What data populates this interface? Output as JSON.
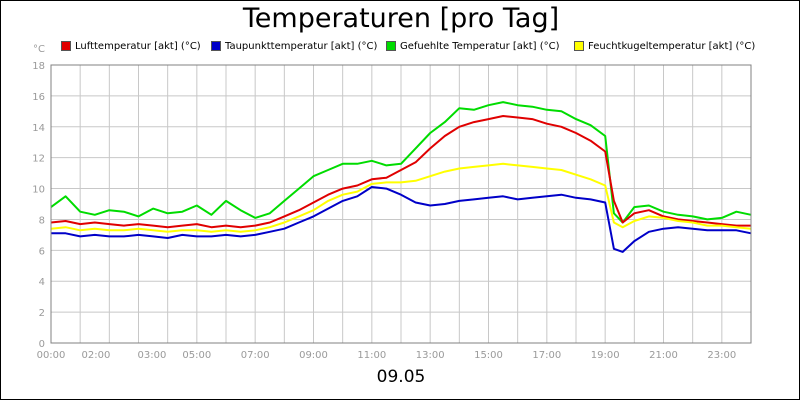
{
  "chart_data": {
    "type": "line",
    "title": "Temperaturen [pro Tag]",
    "ylabel": "°C",
    "xlabel": "09.05",
    "ylim": [
      0,
      18
    ],
    "xlim": [
      0,
      24
    ],
    "grid": true,
    "legend_position": "top",
    "y_ticks": [
      0,
      2,
      4,
      6,
      8,
      10,
      12,
      14,
      16,
      18
    ],
    "x_ticks": [
      {
        "value": 0,
        "label": "00:00"
      },
      {
        "value": 2,
        "label": "02:00"
      },
      {
        "value": 3,
        "label": "03:00"
      },
      {
        "value": 5,
        "label": "05:00"
      },
      {
        "value": 7,
        "label": "07:00"
      },
      {
        "value": 9,
        "label": "09:00"
      },
      {
        "value": 11,
        "label": "11:00"
      },
      {
        "value": 13,
        "label": "13:00"
      },
      {
        "value": 15,
        "label": "15:00"
      },
      {
        "value": 17,
        "label": "17:00"
      },
      {
        "value": 19,
        "label": "19:00"
      },
      {
        "value": 21,
        "label": "21:00"
      },
      {
        "value": 23,
        "label": "23:00"
      }
    ],
    "x": [
      0,
      0.5,
      1,
      1.5,
      2,
      2.5,
      3,
      3.5,
      4,
      4.5,
      5,
      5.5,
      6,
      6.5,
      7,
      7.5,
      8,
      8.5,
      9,
      9.5,
      10,
      10.5,
      11,
      11.5,
      12,
      12.5,
      13,
      13.5,
      14,
      14.5,
      15,
      15.5,
      16,
      16.5,
      17,
      17.5,
      18,
      18.5,
      19,
      19.3,
      19.6,
      20,
      20.5,
      21,
      21.5,
      22,
      22.5,
      23,
      23.5,
      24
    ],
    "series": [
      {
        "name": "Lufttemperatur [akt] (°C)",
        "color": "#e00000",
        "values": [
          7.8,
          7.9,
          7.7,
          7.8,
          7.7,
          7.6,
          7.7,
          7.6,
          7.5,
          7.6,
          7.7,
          7.5,
          7.6,
          7.5,
          7.6,
          7.8,
          8.2,
          8.6,
          9.1,
          9.6,
          10.0,
          10.2,
          10.6,
          10.7,
          11.2,
          11.7,
          12.6,
          13.4,
          14.0,
          14.3,
          14.5,
          14.7,
          14.6,
          14.5,
          14.2,
          14.0,
          13.6,
          13.1,
          12.4,
          9.2,
          7.8,
          8.4,
          8.6,
          8.2,
          8.0,
          7.9,
          7.8,
          7.7,
          7.6,
          7.6
        ]
      },
      {
        "name": "Taupunkttemperatur [akt] (°C)",
        "color": "#0000c8",
        "values": [
          7.1,
          7.1,
          6.9,
          7.0,
          6.9,
          6.9,
          7.0,
          6.9,
          6.8,
          7.0,
          6.9,
          6.9,
          7.0,
          6.9,
          7.0,
          7.2,
          7.4,
          7.8,
          8.2,
          8.7,
          9.2,
          9.5,
          10.1,
          10.0,
          9.6,
          9.1,
          8.9,
          9.0,
          9.2,
          9.3,
          9.4,
          9.5,
          9.3,
          9.4,
          9.5,
          9.6,
          9.4,
          9.3,
          9.1,
          6.1,
          5.9,
          6.6,
          7.2,
          7.4,
          7.5,
          7.4,
          7.3,
          7.3,
          7.3,
          7.1
        ]
      },
      {
        "name": "Gefuehlte Temperatur [akt] (°C)",
        "color": "#00dc00",
        "values": [
          8.8,
          9.5,
          8.5,
          8.3,
          8.6,
          8.5,
          8.2,
          8.7,
          8.4,
          8.5,
          8.9,
          8.3,
          9.2,
          8.6,
          8.1,
          8.4,
          9.2,
          10.0,
          10.8,
          11.2,
          11.6,
          11.6,
          11.8,
          11.5,
          11.6,
          12.6,
          13.6,
          14.3,
          15.2,
          15.1,
          15.4,
          15.6,
          15.4,
          15.3,
          15.1,
          15.0,
          14.5,
          14.1,
          13.4,
          8.4,
          7.8,
          8.8,
          8.9,
          8.5,
          8.3,
          8.2,
          8.0,
          8.1,
          8.5,
          8.3
        ]
      },
      {
        "name": "Feuchtkugeltemperatur [akt] (°C)",
        "color": "#ffff00",
        "values": [
          7.4,
          7.5,
          7.3,
          7.4,
          7.3,
          7.3,
          7.4,
          7.3,
          7.2,
          7.3,
          7.3,
          7.2,
          7.3,
          7.2,
          7.3,
          7.5,
          7.8,
          8.2,
          8.6,
          9.2,
          9.6,
          9.8,
          10.3,
          10.4,
          10.4,
          10.5,
          10.8,
          11.1,
          11.3,
          11.4,
          11.5,
          11.6,
          11.5,
          11.4,
          11.3,
          11.2,
          10.9,
          10.6,
          10.2,
          7.8,
          7.5,
          7.9,
          8.2,
          8.1,
          7.9,
          7.8,
          7.6,
          7.6,
          7.5,
          7.4
        ]
      }
    ]
  }
}
